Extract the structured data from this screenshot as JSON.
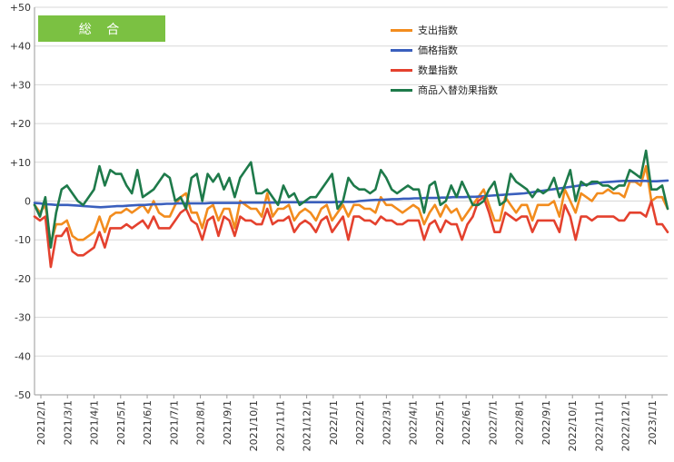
{
  "colors": {
    "spend": "#f28c1e",
    "price": "#3a5fbd",
    "quantity": "#e4412e",
    "substitution": "#1e7a4a",
    "badge_bg": "#7bc142",
    "grid": "#d8d8d8",
    "axis": "#9a9a9a"
  },
  "badge": {
    "label": "総 合"
  },
  "chart_data": {
    "type": "line",
    "title": "総 合",
    "ylim": [
      -50,
      50
    ],
    "yticks": [
      50,
      40,
      30,
      20,
      10,
      0,
      -10,
      -20,
      -30,
      -40,
      -50
    ],
    "ytick_labels": [
      "+50",
      "+40",
      "+30",
      "+20",
      "+10",
      "0",
      "-10",
      "-20",
      "-30",
      "-40",
      "-50"
    ],
    "xtick_labels": [
      "2021/2/1",
      "2021/3/1",
      "2021/4/1",
      "2021/5/1",
      "2021/6/1",
      "2021/7/1",
      "2021/8/1",
      "2021/9/1",
      "2021/10/1",
      "2021/11/1",
      "2021/12/1",
      "2022/1/1",
      "2022/2/1",
      "2022/3/1",
      "2022/4/1",
      "2022/5/1",
      "2022/6/1",
      "2022/7/1",
      "2022/8/1",
      "2022/9/1",
      "2022/10/1",
      "2022/11/1",
      "2022/12/1",
      "2023/1/1"
    ],
    "grid": true,
    "legend_position": "top-right",
    "series": [
      {
        "name": "支出指数",
        "color_key": "spend",
        "values": [
          -1,
          -3,
          -1,
          -11,
          -6,
          -6,
          -5,
          -9,
          -10,
          -10,
          -9,
          -8,
          -4,
          -8,
          -4,
          -3,
          -3,
          -2,
          -3,
          -2,
          -1,
          -3,
          0,
          -3,
          -4,
          -4,
          -1,
          1,
          2,
          -3,
          -3,
          -7,
          -2,
          -1,
          -5,
          -2,
          -2,
          -7,
          0,
          -1,
          -2,
          -2,
          -4,
          2,
          -4,
          -2,
          -2,
          -1,
          -5,
          -3,
          -2,
          -3,
          -5,
          -2,
          -1,
          -5,
          -3,
          -1,
          -4,
          -1,
          -1,
          -2,
          -2,
          -3,
          1,
          -1,
          -1,
          -2,
          -3,
          -2,
          -1,
          -2,
          -6,
          -3,
          -1,
          -4,
          -1,
          -3,
          -2,
          -5,
          -3,
          -1,
          1,
          3,
          -1,
          -5,
          -5,
          1,
          -1,
          -3,
          -1,
          -1,
          -5,
          -1,
          -1,
          -1,
          0,
          -4,
          3,
          0,
          -3,
          2,
          1,
          0,
          2,
          2,
          3,
          2,
          2,
          1,
          5,
          5,
          4,
          9,
          0,
          1,
          1,
          -2
        ],
        "xfrac_start": 0
      },
      {
        "name": "価格指数",
        "color_key": "price",
        "values": [
          -0.5,
          -0.6,
          -0.8,
          -0.9,
          -1.0,
          -1.0,
          -1.0,
          -1.1,
          -1.2,
          -1.3,
          -1.4,
          -1.5,
          -1.6,
          -1.5,
          -1.4,
          -1.3,
          -1.3,
          -1.2,
          -1.1,
          -1.0,
          -1.0,
          -0.9,
          -0.8,
          -0.8,
          -0.7,
          -0.7,
          -0.6,
          -0.6,
          -0.6,
          -0.6,
          -0.6,
          -0.6,
          -0.5,
          -0.5,
          -0.5,
          -0.5,
          -0.5,
          -0.5,
          -0.4,
          -0.4,
          -0.4,
          -0.4,
          -0.4,
          -0.4,
          -0.4,
          -0.3,
          -0.3,
          -0.3,
          -0.3,
          -0.3,
          -0.3,
          -0.3,
          -0.3,
          -0.3,
          -0.3,
          -0.2,
          -0.2,
          -0.2,
          -0.2,
          0,
          0.1,
          0.2,
          0.3,
          0.3,
          0.4,
          0.5,
          0.5,
          0.6,
          0.6,
          0.7,
          0.7,
          0.8,
          0.8,
          0.8,
          0.9,
          0.9,
          1.0,
          1.0,
          1.0,
          1.1,
          1.1,
          1.2,
          1.3,
          1.4,
          1.5,
          1.6,
          1.7,
          1.8,
          1.9,
          2.0,
          2.2,
          2.4,
          2.6,
          2.8,
          3.0,
          3.2,
          3.4,
          3.6,
          3.8,
          4.0,
          4.2,
          4.4,
          4.6,
          4.8,
          4.9,
          5.0,
          5.1,
          5.2,
          5.2,
          5.2,
          5.2,
          5.2,
          5.1,
          5.1,
          5.2,
          5.3
        ],
        "xfrac_start": 0
      },
      {
        "name": "数量指数",
        "color_key": "quantity",
        "values": [
          -4,
          -5,
          -4,
          -17,
          -9,
          -9,
          -7,
          -13,
          -14,
          -14,
          -13,
          -12,
          -8,
          -12,
          -7,
          -7,
          -7,
          -6,
          -7,
          -6,
          -5,
          -7,
          -4,
          -7,
          -7,
          -7,
          -5,
          -3,
          -2,
          -5,
          -6,
          -10,
          -5,
          -4,
          -9,
          -4,
          -5,
          -9,
          -4,
          -5,
          -5,
          -6,
          -6,
          -2,
          -6,
          -5,
          -5,
          -4,
          -8,
          -6,
          -5,
          -6,
          -8,
          -5,
          -4,
          -8,
          -6,
          -4,
          -10,
          -4,
          -4,
          -5,
          -5,
          -6,
          -4,
          -5,
          -5,
          -6,
          -6,
          -5,
          -5,
          -5,
          -10,
          -6,
          -5,
          -8,
          -5,
          -6,
          -6,
          -10,
          -6,
          -4,
          0,
          1,
          -3,
          -8,
          -8,
          -3,
          -4,
          -5,
          -4,
          -4,
          -8,
          -5,
          -5,
          -5,
          -5,
          -8,
          -1,
          -4,
          -10,
          -4,
          -4,
          -5,
          -4,
          -4,
          -4,
          -4,
          -5,
          -5,
          -3,
          -3,
          -3,
          -4,
          0,
          -6,
          -6,
          -8
        ],
        "xfrac_start": 0
      },
      {
        "name": "商品入替効果指数",
        "color_key": "substitution",
        "values": [
          -1,
          -4,
          1,
          -12,
          -3,
          3,
          4,
          2,
          0,
          -1,
          1,
          3,
          9,
          4,
          8,
          7,
          7,
          4,
          2,
          8,
          1,
          2,
          3,
          5,
          7,
          6,
          0,
          1,
          -2,
          6,
          7,
          0,
          7,
          5,
          7,
          3,
          6,
          1,
          6,
          8,
          10,
          2,
          2,
          3,
          1,
          -1,
          4,
          1,
          2,
          -1,
          0,
          1,
          1,
          3,
          5,
          7,
          -2,
          0,
          6,
          4,
          3,
          3,
          2,
          3,
          8,
          6,
          3,
          2,
          3,
          4,
          3,
          3,
          -3,
          4,
          5,
          -1,
          0,
          4,
          1,
          5,
          2,
          -1,
          -1,
          0,
          3,
          5,
          -1,
          0,
          7,
          5,
          4,
          3,
          1,
          3,
          2,
          3,
          6,
          1,
          4,
          8,
          0,
          5,
          4,
          5,
          5,
          4,
          4,
          3,
          4,
          4,
          8,
          7,
          6,
          13,
          3,
          3,
          4,
          -2
        ],
        "xfrac_start": 0
      }
    ]
  }
}
